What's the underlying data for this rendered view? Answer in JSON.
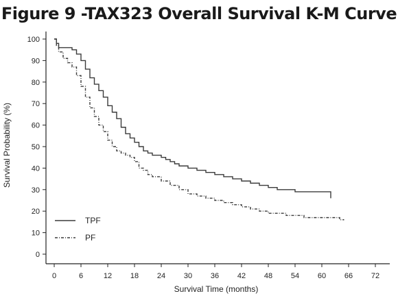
{
  "chart_data": {
    "type": "line",
    "title": "Figure 9 -TAX323 Overall Survival K-M Curve",
    "xlabel": "Survival Time (months)",
    "ylabel": "Survival Probability (%)",
    "xlim": [
      0,
      72
    ],
    "ylim": [
      0,
      100
    ],
    "x_ticks": [
      0,
      6,
      12,
      18,
      24,
      30,
      36,
      42,
      48,
      54,
      60,
      66,
      72
    ],
    "y_ticks": [
      0,
      10,
      20,
      30,
      40,
      50,
      60,
      70,
      80,
      90,
      100
    ],
    "grid": false,
    "legend_position": "bottom-left",
    "series": [
      {
        "name": "TPF",
        "line_style": "solid",
        "x": [
          0,
          0.5,
          1,
          2,
          4,
          5,
          6,
          7,
          8,
          9,
          10,
          11,
          12,
          13,
          14,
          15,
          16,
          17,
          18,
          19,
          20,
          21,
          22,
          24,
          25,
          26,
          27,
          28,
          30,
          32,
          34,
          35,
          36,
          38,
          40,
          41,
          42,
          44,
          46,
          48,
          50,
          52,
          54,
          56,
          58,
          59,
          60,
          62
        ],
        "y": [
          100,
          98,
          96,
          96,
          95,
          93,
          90,
          86,
          82,
          79,
          76,
          73,
          69,
          66,
          63,
          59,
          56,
          54,
          52,
          50,
          48,
          47,
          46,
          45,
          44,
          43,
          42,
          41,
          40,
          39,
          38,
          38,
          37,
          36,
          35,
          35,
          34,
          33,
          32,
          31,
          30,
          30,
          29,
          29,
          29,
          29,
          29,
          26
        ]
      },
      {
        "name": "PF",
        "line_style": "dash-dot",
        "x": [
          0,
          0.5,
          1,
          2,
          3,
          4,
          5,
          6,
          7,
          8,
          9,
          10,
          11,
          12,
          13,
          14,
          15,
          16,
          17,
          18,
          19,
          20,
          21,
          22,
          24,
          26,
          28,
          30,
          32,
          34,
          36,
          38,
          40,
          42,
          44,
          46,
          48,
          50,
          52,
          54,
          56,
          58,
          60,
          62,
          64,
          65
        ],
        "y": [
          100,
          97,
          94,
          91,
          89,
          87,
          83,
          78,
          73,
          68,
          64,
          60,
          57,
          53,
          50,
          48,
          47,
          46,
          45,
          43,
          40,
          39,
          37,
          36,
          34,
          32,
          30,
          28,
          27,
          26,
          25,
          24,
          23,
          22,
          21,
          20,
          19,
          19,
          18,
          18,
          17,
          17,
          17,
          17,
          16,
          16
        ]
      }
    ]
  },
  "colors": {
    "TPF": "#3a3a3a",
    "PF": "#3a3a3a",
    "axis": "#222222"
  }
}
